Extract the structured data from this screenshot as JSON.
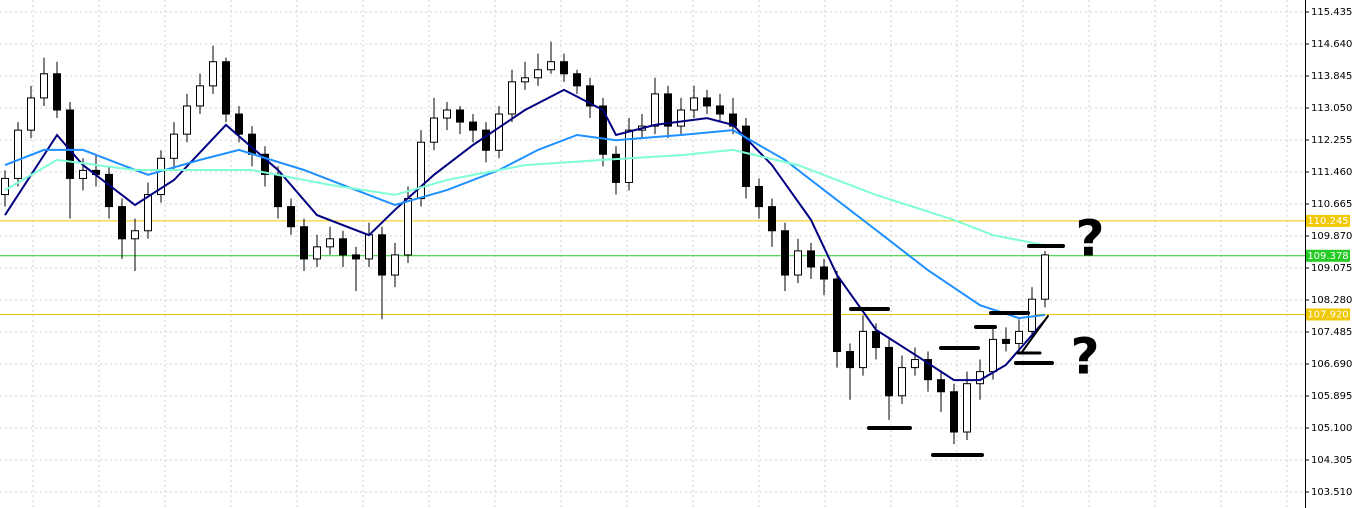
{
  "chart_data": {
    "type": "candlestick",
    "ylim": [
      103.112,
      115.733
    ],
    "yticks": [
      115.435,
      {
        "value": 114.64,
        "label": "114.640"
      },
      113.845,
      {
        "value": 113.05,
        "label": "113.050"
      },
      112.255,
      {
        "value": 111.46,
        "label": "111.460"
      },
      110.665,
      {
        "value": 109.87,
        "label": "109.870"
      },
      109.075,
      {
        "value": 108.28,
        "label": "108.280"
      },
      107.485,
      {
        "value": 106.69,
        "label": "106.690"
      },
      105.895,
      {
        "value": 105.1,
        "label": "105.100"
      },
      104.305,
      {
        "value": 103.51,
        "label": "103.510"
      }
    ],
    "grid": true,
    "candle_up_color": "#ffffff",
    "candle_down_color": "#000000",
    "ohlc": [
      [
        110.9,
        111.5,
        110.6,
        111.3
      ],
      [
        111.3,
        112.7,
        111.1,
        112.5
      ],
      [
        112.5,
        113.6,
        112.3,
        113.3
      ],
      [
        113.3,
        114.3,
        113.1,
        113.9
      ],
      [
        113.9,
        114.2,
        112.8,
        113.0
      ],
      [
        113.0,
        113.2,
        110.3,
        111.3
      ],
      [
        111.3,
        111.8,
        111.0,
        111.5
      ],
      [
        111.5,
        111.9,
        111.1,
        111.4
      ],
      [
        111.4,
        111.6,
        110.3,
        110.6
      ],
      [
        110.6,
        110.8,
        109.3,
        109.8
      ],
      [
        109.8,
        110.3,
        109.0,
        110.0
      ],
      [
        110.0,
        111.2,
        109.8,
        110.9
      ],
      [
        110.9,
        112.0,
        110.7,
        111.8
      ],
      [
        111.8,
        112.7,
        111.5,
        112.4
      ],
      [
        112.4,
        113.4,
        112.2,
        113.1
      ],
      [
        113.1,
        113.9,
        112.9,
        113.6
      ],
      [
        113.6,
        114.6,
        113.4,
        114.2
      ],
      [
        114.2,
        114.3,
        112.7,
        112.9
      ],
      [
        112.9,
        113.1,
        112.2,
        112.4
      ],
      [
        112.4,
        112.6,
        111.6,
        111.9
      ],
      [
        111.9,
        112.1,
        111.1,
        111.4
      ],
      [
        111.4,
        111.6,
        110.3,
        110.6
      ],
      [
        110.6,
        110.8,
        109.9,
        110.1
      ],
      [
        110.1,
        110.3,
        109.0,
        109.3
      ],
      [
        109.3,
        109.9,
        109.1,
        109.6
      ],
      [
        109.6,
        110.1,
        109.4,
        109.8
      ],
      [
        109.8,
        110.0,
        109.1,
        109.4
      ],
      [
        109.4,
        109.6,
        108.5,
        109.3
      ],
      [
        109.3,
        110.2,
        109.1,
        109.9
      ],
      [
        109.9,
        110.1,
        107.8,
        108.9
      ],
      [
        108.9,
        109.7,
        108.6,
        109.4
      ],
      [
        109.4,
        111.1,
        109.2,
        110.8
      ],
      [
        110.8,
        112.5,
        110.6,
        112.2
      ],
      [
        112.2,
        113.3,
        112.0,
        112.8
      ],
      [
        112.8,
        113.2,
        112.5,
        113.0
      ],
      [
        113.0,
        113.1,
        112.4,
        112.7
      ],
      [
        112.7,
        112.9,
        112.2,
        112.5
      ],
      [
        112.5,
        112.7,
        111.7,
        112.0
      ],
      [
        112.0,
        113.1,
        111.8,
        112.9
      ],
      [
        112.9,
        114.0,
        112.7,
        113.7
      ],
      [
        113.7,
        114.2,
        113.5,
        113.8
      ],
      [
        113.8,
        114.4,
        113.6,
        114.0
      ],
      [
        114.0,
        114.7,
        113.9,
        114.2
      ],
      [
        114.2,
        114.4,
        113.7,
        113.9
      ],
      [
        113.9,
        114.0,
        113.4,
        113.6
      ],
      [
        113.6,
        113.8,
        112.8,
        113.1
      ],
      [
        113.1,
        113.3,
        111.6,
        111.9
      ],
      [
        111.9,
        112.1,
        110.9,
        111.2
      ],
      [
        111.2,
        112.8,
        111.0,
        112.5
      ],
      [
        112.5,
        112.9,
        112.3,
        112.6
      ],
      [
        112.6,
        113.8,
        112.4,
        113.4
      ],
      [
        113.4,
        113.6,
        112.3,
        112.6
      ],
      [
        112.6,
        113.3,
        112.4,
        113.0
      ],
      [
        113.0,
        113.6,
        112.8,
        113.3
      ],
      [
        113.3,
        113.5,
        112.9,
        113.1
      ],
      [
        113.1,
        113.4,
        112.7,
        112.9
      ],
      [
        112.9,
        113.3,
        112.4,
        112.6
      ],
      [
        112.6,
        112.8,
        110.8,
        111.1
      ],
      [
        111.1,
        111.3,
        110.3,
        110.6
      ],
      [
        110.6,
        110.8,
        109.6,
        110.0
      ],
      [
        110.0,
        110.2,
        108.5,
        108.9
      ],
      [
        108.9,
        109.8,
        108.7,
        109.5
      ],
      [
        109.5,
        109.7,
        108.8,
        109.1
      ],
      [
        109.1,
        109.3,
        108.4,
        108.8
      ],
      [
        108.8,
        109.0,
        106.6,
        107.0
      ],
      [
        107.0,
        107.2,
        105.8,
        106.6
      ],
      [
        106.6,
        107.9,
        106.4,
        107.5
      ],
      [
        107.5,
        107.7,
        106.8,
        107.1
      ],
      [
        107.1,
        107.3,
        105.3,
        105.9
      ],
      [
        105.9,
        106.9,
        105.7,
        106.6
      ],
      [
        106.6,
        107.1,
        106.4,
        106.8
      ],
      [
        106.8,
        107.0,
        106.0,
        106.3
      ],
      [
        106.3,
        106.5,
        105.5,
        106.0
      ],
      [
        106.0,
        106.2,
        104.7,
        105.0
      ],
      [
        105.0,
        106.5,
        104.8,
        106.2
      ],
      [
        106.2,
        106.8,
        105.8,
        106.5
      ],
      [
        106.5,
        107.6,
        106.3,
        107.3
      ],
      [
        107.3,
        107.6,
        107.0,
        107.2
      ],
      [
        107.2,
        107.8,
        107.0,
        107.5
      ],
      [
        107.5,
        108.6,
        107.3,
        108.3
      ],
      [
        108.3,
        109.5,
        108.1,
        109.4
      ]
    ],
    "moving_averages": [
      {
        "color": "#000080",
        "x": [
          0,
          4,
          6,
          10,
          13,
          17,
          21,
          24,
          28,
          30,
          33,
          36,
          40,
          43,
          46,
          47,
          50,
          54,
          56,
          59,
          62,
          64,
          67,
          70,
          73,
          75,
          77,
          80
        ],
        "values": [
          110.39,
          112.38,
          111.63,
          110.64,
          111.26,
          112.63,
          111.51,
          110.39,
          109.89,
          110.52,
          111.39,
          112.13,
          113.0,
          113.5,
          113.0,
          112.38,
          112.63,
          112.8,
          112.63,
          111.63,
          110.27,
          108.9,
          107.54,
          106.92,
          106.29,
          106.29,
          106.67,
          107.78
        ]
      },
      {
        "color": "#1e90ff",
        "x": [
          0,
          3,
          6,
          11,
          15,
          18,
          23,
          27,
          30,
          34,
          38,
          41,
          44,
          47,
          52,
          56,
          60,
          63,
          67,
          71,
          75,
          78,
          80
        ],
        "values": [
          111.63,
          112.01,
          112.01,
          111.39,
          111.76,
          112.01,
          111.51,
          111.01,
          110.64,
          111.01,
          111.51,
          112.01,
          112.38,
          112.25,
          112.38,
          112.5,
          111.76,
          111.01,
          110.02,
          109.02,
          108.15,
          107.83,
          107.91
        ]
      },
      {
        "color": "#7fffd4",
        "x": [
          0,
          4,
          10,
          19,
          25,
          30,
          34,
          40,
          46,
          52,
          56,
          61,
          67,
          73,
          76,
          80
        ],
        "values": [
          111.01,
          111.76,
          111.51,
          111.51,
          111.14,
          110.89,
          111.26,
          111.63,
          111.76,
          111.88,
          112.01,
          111.63,
          110.89,
          110.27,
          109.89,
          109.64
        ]
      }
    ],
    "hlines": [
      110.245,
      109.378,
      {
        "value": 107.92,
        "label": "107.920"
      }
    ],
    "hline_colors": [
      "#f0c800",
      "#22cc22",
      "#f0c800"
    ],
    "annotations": [
      "?",
      "?"
    ]
  }
}
